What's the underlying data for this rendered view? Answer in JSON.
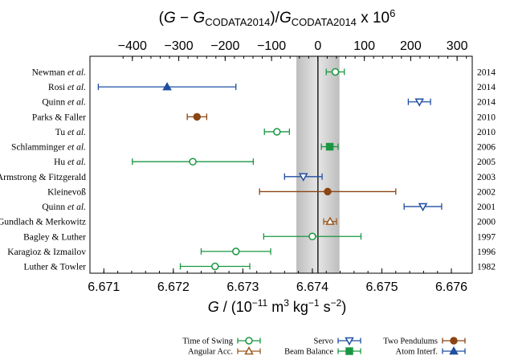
{
  "chart_data": {
    "type": "scatter",
    "top_axis_label": "(G − G_CODATA2014)/G_CODATA2014 x 10^6",
    "top_ticks": [
      "−400",
      "−300",
      "−200",
      "−100",
      "0",
      "100",
      "200",
      "300"
    ],
    "xlabel": "G / (10⁻¹¹ m³ kg⁻¹ s⁻²)",
    "x_ticks": [
      "6.671",
      "6.672",
      "6.673",
      "6.674",
      "6.675",
      "6.676"
    ],
    "xlim": [
      6.6708,
      6.6763
    ],
    "codata_2014": {
      "value": 6.67408,
      "uncertainty": 0.00031
    },
    "reference_line": 6.67408,
    "series": [
      {
        "method": "Time of Swing",
        "color": "#1a9641",
        "marker": "circle-open"
      },
      {
        "method": "Angular Acc.",
        "color": "#9c5a1f",
        "marker": "triangle-up-open"
      },
      {
        "method": "Servo",
        "color": "#1f4fa0",
        "marker": "triangle-down-open"
      },
      {
        "method": "Beam Balance",
        "color": "#1a9641",
        "marker": "square-filled"
      },
      {
        "method": "Two Pendulums",
        "color": "#8b4513",
        "marker": "circle-filled"
      },
      {
        "method": "Atom Interf.",
        "color": "#1f4fa0",
        "marker": "triangle-up-filled"
      }
    ],
    "points": [
      {
        "label_main": "Newman",
        "label_italic": " et al.",
        "year": "2014",
        "value": 6.67433,
        "err": 0.00013,
        "method": "Time of Swing"
      },
      {
        "label_main": "Rosi",
        "label_italic": " et al.",
        "year": "2014",
        "value": 6.67191,
        "err": 0.00099,
        "method": "Atom Interf."
      },
      {
        "label_main": "Quinn",
        "label_italic": " et al.",
        "year": "2014",
        "value": 6.67554,
        "err": 0.00016,
        "method": "Servo"
      },
      {
        "label_main": "Parks & Faller",
        "label_italic": "",
        "year": "2010",
        "value": 6.67234,
        "err": 0.00014,
        "method": "Two Pendulums"
      },
      {
        "label_main": "Tu",
        "label_italic": " et al.",
        "year": "2010",
        "value": 6.67349,
        "err": 0.00018,
        "method": "Time of Swing"
      },
      {
        "label_main": "Schlamminger",
        "label_italic": " et al.",
        "year": "2006",
        "value": 6.67425,
        "err": 0.00012,
        "method": "Beam Balance"
      },
      {
        "label_main": "Hu",
        "label_italic": "  et al.",
        "year": "2005",
        "value": 6.67228,
        "err": 0.00087,
        "method": "Time of Swing"
      },
      {
        "label_main": "Armstrong & Fitzgerald",
        "label_italic": "",
        "year": "2003",
        "value": 6.67387,
        "err": 0.00027,
        "method": "Servo"
      },
      {
        "label_main": "Kleinevoß",
        "label_italic": "",
        "year": "2002",
        "value": 6.67422,
        "err": 0.00098,
        "method": "Two Pendulums"
      },
      {
        "label_main": "Quinn",
        "label_italic": " et al.",
        "year": "2001",
        "value": 6.67559,
        "err": 0.00027,
        "method": "Servo"
      },
      {
        "label_main": "Gundlach & Merkowitz",
        "label_italic": "",
        "year": "2000",
        "value": 6.674255,
        "err": 9.2e-05,
        "method": "Angular Acc."
      },
      {
        "label_main": "Bagley & Luther",
        "label_italic": "",
        "year": "1997",
        "value": 6.674,
        "err": 0.0007,
        "method": "Time of Swing"
      },
      {
        "label_main": "Karagioz & Izmailov",
        "label_italic": "",
        "year": "1996",
        "value": 6.6729,
        "err": 0.0005,
        "method": "Time of Swing"
      },
      {
        "label_main": "Luther & Towler",
        "label_italic": "",
        "year": "1982",
        "value": 6.6726,
        "err": 0.0005,
        "method": "Time of Swing"
      }
    ],
    "legend": [
      {
        "label": "Time of Swing",
        "method": "Time of Swing"
      },
      {
        "label": "Angular Acc.",
        "method": "Angular Acc."
      },
      {
        "label": "Servo",
        "method": "Servo"
      },
      {
        "label": "Beam Balance",
        "method": "Beam Balance"
      },
      {
        "label": "Two Pendulums",
        "method": "Two Pendulums"
      },
      {
        "label": "Atom Interf.",
        "method": "Atom Interf."
      }
    ],
    "legend_position": "bottom"
  }
}
